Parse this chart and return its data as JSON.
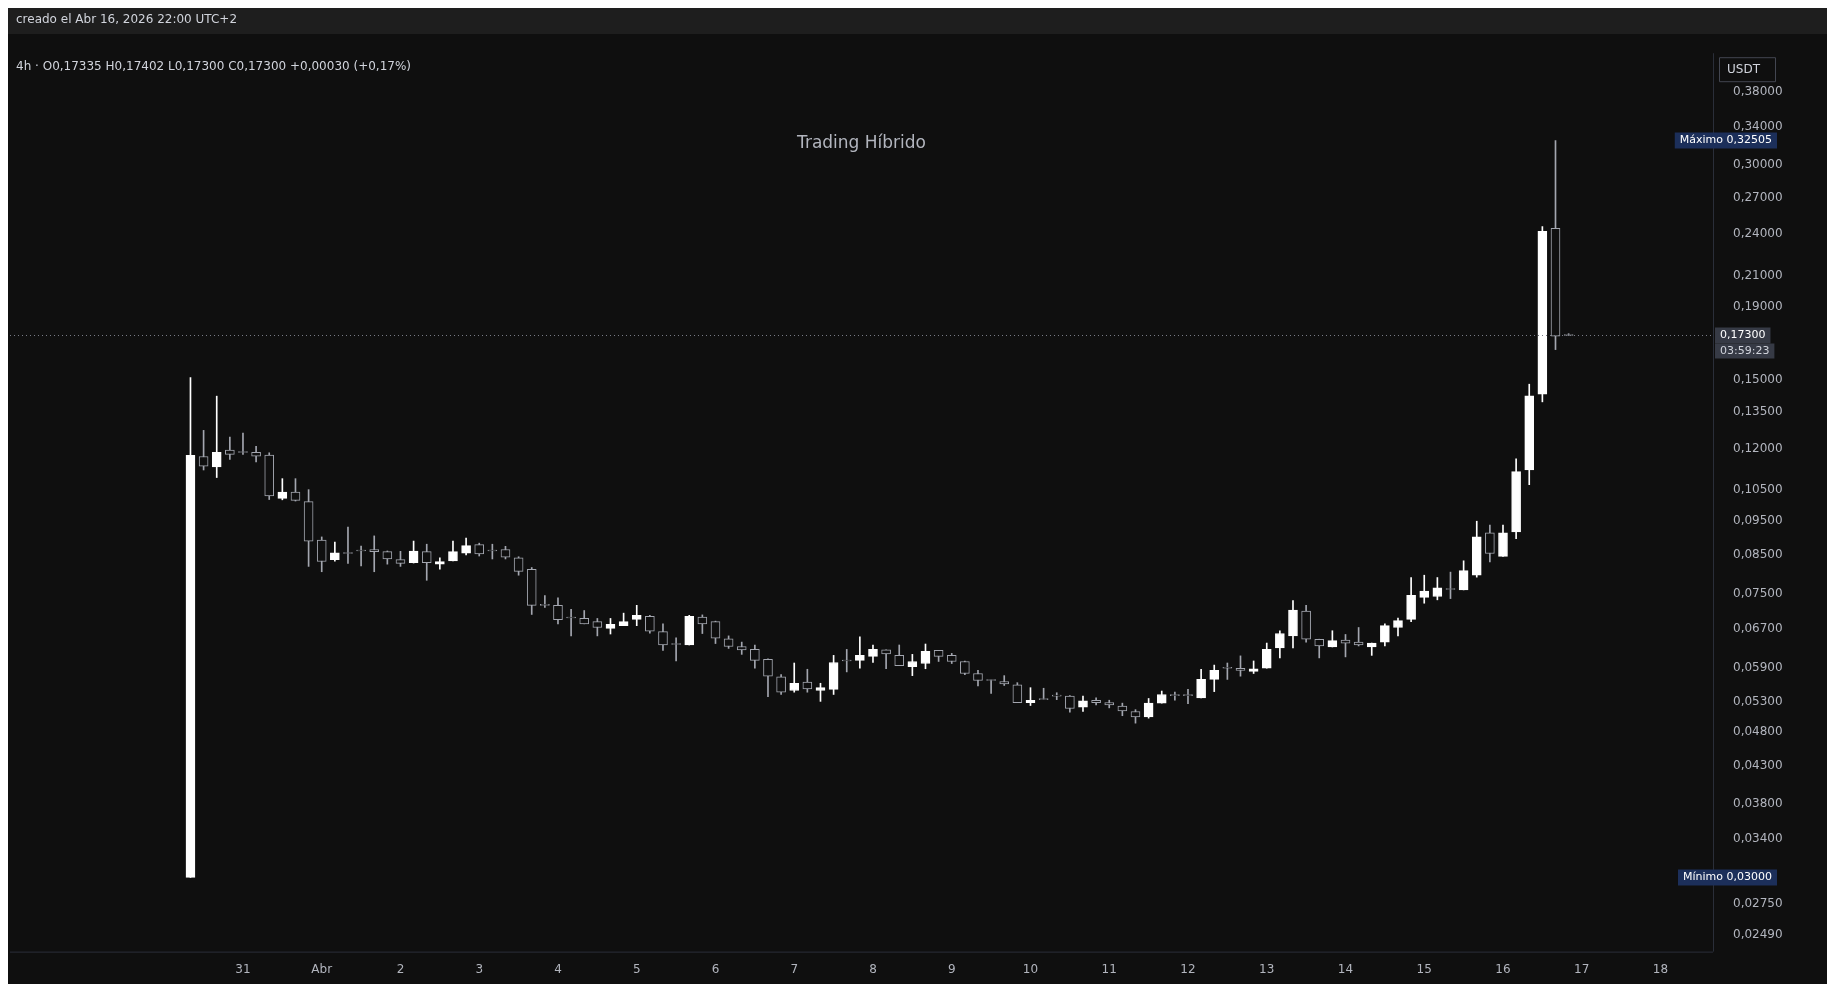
{
  "chart_data": {
    "type": "candlestick",
    "subtitle": "Trading Híbrido",
    "ylabel": "USDT",
    "annotations": [
      "creado el Abr 16, 2026 22:00 UTC+2",
      "4h · O0,17335 H0,17402 L0,17300 C0,17300 +0,00030 (+0,17%)",
      "Máximo 0,32505",
      "Mínimo 0,03000",
      "03:59:23"
    ],
    "colors": [
      "#ffffff",
      "#a3a6af",
      "#ffffff",
      "#a3a6af",
      "#a3a6af",
      "#a3a6af",
      "#a3a6af",
      "#ffffff",
      "#a3a6af",
      "#a3a6af",
      "#a3a6af",
      "#ffffff",
      "#a3a6af",
      "#a3a6af",
      "#a3a6af",
      "#a3a6af",
      "#a3a6af",
      "#ffffff",
      "#a3a6af",
      "#ffffff",
      "#ffffff",
      "#ffffff",
      "#a3a6af",
      "#a3a6af",
      "#a3a6af",
      "#a3a6af",
      "#a3a6af",
      "#a3a6af",
      "#a3a6af",
      "#a3a6af",
      "#a3a6af",
      "#a3a6af",
      "#ffffff",
      "#ffffff",
      "#ffffff",
      "#a3a6af",
      "#a3a6af",
      "#a3a6af",
      "#ffffff",
      "#a3a6af",
      "#a3a6af",
      "#a3a6af",
      "#a3a6af",
      "#a3a6af",
      "#a3a6af",
      "#a3a6af",
      "#ffffff",
      "#a3a6af",
      "#ffffff",
      "#ffffff",
      "#a3a6af",
      "#ffffff",
      "#ffffff",
      "#a3a6af",
      "#a3a6af",
      "#ffffff",
      "#ffffff",
      "#a3a6af",
      "#a3a6af",
      "#a3a6af",
      "#a3a6af",
      "#a3a6af",
      "#a3a6af",
      "#a3a6af",
      "#ffffff",
      "#a3a6af",
      "#a3a6af",
      "#a3a6af",
      "#ffffff",
      "#a3a6af",
      "#a3a6af",
      "#a3a6af",
      "#a3a6af",
      "#ffffff",
      "#ffffff",
      "#a3a6af",
      "#a3a6af",
      "#ffffff",
      "#ffffff",
      "#a3a6af",
      "#a3a6af",
      "#ffffff",
      "#ffffff",
      "#ffffff",
      "#ffffff",
      "#a3a6af",
      "#a3a6af",
      "#ffffff",
      "#a3a6af",
      "#a3a6af",
      "#ffffff",
      "#ffffff",
      "#ffffff",
      "#ffffff",
      "#ffffff",
      "#ffffff",
      "#a3a6af",
      "#ffffff",
      "#ffffff",
      "#a3a6af",
      "#ffffff",
      "#ffffff",
      "#ffffff",
      "#ffffff",
      "#a3a6af",
      "#a3a6af"
    ],
    "x": [
      "2026-03-30T08:00",
      "2026-03-30T12:00",
      "2026-03-30T16:00",
      "2026-03-30T20:00",
      "2026-03-31T00:00",
      "2026-03-31T04:00",
      "2026-03-31T08:00",
      "2026-03-31T12:00",
      "2026-03-31T16:00",
      "2026-03-31T20:00",
      "2026-04-01T00:00",
      "2026-04-01T04:00",
      "2026-04-01T08:00",
      "2026-04-01T12:00",
      "2026-04-01T16:00",
      "2026-04-01T20:00",
      "2026-04-02T00:00",
      "2026-04-02T04:00",
      "2026-04-02T08:00",
      "2026-04-02T12:00",
      "2026-04-02T16:00",
      "2026-04-02T20:00",
      "2026-04-03T00:00",
      "2026-04-03T04:00",
      "2026-04-03T08:00",
      "2026-04-03T12:00",
      "2026-04-03T16:00",
      "2026-04-03T20:00",
      "2026-04-04T00:00",
      "2026-04-04T04:00",
      "2026-04-04T08:00",
      "2026-04-04T12:00",
      "2026-04-04T16:00",
      "2026-04-04T20:00",
      "2026-04-05T00:00",
      "2026-04-05T04:00",
      "2026-04-05T08:00",
      "2026-04-05T12:00",
      "2026-04-05T16:00",
      "2026-04-05T20:00",
      "2026-04-06T00:00",
      "2026-04-06T04:00",
      "2026-04-06T08:00",
      "2026-04-06T12:00",
      "2026-04-06T16:00",
      "2026-04-06T20:00",
      "2026-04-07T00:00",
      "2026-04-07T04:00",
      "2026-04-07T08:00",
      "2026-04-07T12:00",
      "2026-04-07T16:00",
      "2026-04-07T20:00",
      "2026-04-08T00:00",
      "2026-04-08T04:00",
      "2026-04-08T08:00",
      "2026-04-08T12:00",
      "2026-04-08T16:00",
      "2026-04-08T20:00",
      "2026-04-09T00:00",
      "2026-04-09T04:00",
      "2026-04-09T08:00",
      "2026-04-09T12:00",
      "2026-04-09T16:00",
      "2026-04-09T20:00",
      "2026-04-10T00:00",
      "2026-04-10T04:00",
      "2026-04-10T08:00",
      "2026-04-10T12:00",
      "2026-04-10T16:00",
      "2026-04-10T20:00",
      "2026-04-11T00:00",
      "2026-04-11T04:00",
      "2026-04-11T08:00",
      "2026-04-11T12:00",
      "2026-04-11T16:00",
      "2026-04-11T20:00",
      "2026-04-12T00:00",
      "2026-04-12T04:00",
      "2026-04-12T08:00",
      "2026-04-12T12:00",
      "2026-04-12T16:00",
      "2026-04-12T20:00",
      "2026-04-13T00:00",
      "2026-04-13T04:00",
      "2026-04-13T08:00",
      "2026-04-13T12:00",
      "2026-04-13T16:00",
      "2026-04-13T20:00",
      "2026-04-14T00:00",
      "2026-04-14T04:00",
      "2026-04-14T08:00",
      "2026-04-14T12:00",
      "2026-04-14T16:00",
      "2026-04-14T20:00",
      "2026-04-15T00:00",
      "2026-04-15T04:00",
      "2026-04-15T08:00",
      "2026-04-15T12:00",
      "2026-04-15T16:00",
      "2026-04-15T20:00",
      "2026-04-16T00:00",
      "2026-04-16T04:00",
      "2026-04-16T08:00",
      "2026-04-16T12:00",
      "2026-04-16T16:00",
      "2026-04-16T20:00"
    ],
    "ohlc": [
      [
        0.03,
        0.151,
        0.03,
        0.1174
      ],
      [
        0.117,
        0.1273,
        0.112,
        0.1134
      ],
      [
        0.1131,
        0.1422,
        0.1093,
        0.1186
      ],
      [
        0.1194,
        0.1246,
        0.1159,
        0.1178
      ],
      [
        0.1186,
        0.1262,
        0.1178,
        0.1185
      ],
      [
        0.1186,
        0.1209,
        0.115,
        0.1171
      ],
      [
        0.1175,
        0.1184,
        0.1018,
        0.103
      ],
      [
        0.1022,
        0.1089,
        0.1017,
        0.1043
      ],
      [
        0.1043,
        0.1089,
        0.1013,
        0.1015
      ],
      [
        0.1011,
        0.1051,
        0.082,
        0.089
      ],
      [
        0.0893,
        0.0902,
        0.0806,
        0.0833
      ],
      [
        0.0838,
        0.0887,
        0.0834,
        0.0857
      ],
      [
        0.0855,
        0.0931,
        0.0828,
        0.0855
      ],
      [
        0.0862,
        0.0876,
        0.0821,
        0.0862
      ],
      [
        0.0866,
        0.0905,
        0.0806,
        0.086
      ],
      [
        0.086,
        0.0862,
        0.0826,
        0.084
      ],
      [
        0.0838,
        0.0861,
        0.082,
        0.0828
      ],
      [
        0.083,
        0.089,
        0.0829,
        0.0862
      ],
      [
        0.086,
        0.0881,
        0.0784,
        0.083
      ],
      [
        0.0826,
        0.0843,
        0.0813,
        0.0833
      ],
      [
        0.0835,
        0.089,
        0.0835,
        0.086
      ],
      [
        0.0856,
        0.0899,
        0.0851,
        0.0877
      ],
      [
        0.088,
        0.0884,
        0.0848,
        0.0854
      ],
      [
        0.0862,
        0.0881,
        0.084,
        0.0862
      ],
      [
        0.0866,
        0.0875,
        0.084,
        0.0845
      ],
      [
        0.0843,
        0.0846,
        0.0797,
        0.0807
      ],
      [
        0.0812,
        0.0817,
        0.0702,
        0.0723
      ],
      [
        0.0723,
        0.0746,
        0.0718,
        0.0723
      ],
      [
        0.0723,
        0.0741,
        0.0681,
        0.069
      ],
      [
        0.0694,
        0.0714,
        0.0655,
        0.0694
      ],
      [
        0.0693,
        0.0711,
        0.0681,
        0.0681
      ],
      [
        0.0686,
        0.0693,
        0.0655,
        0.0673
      ],
      [
        0.0671,
        0.0693,
        0.0659,
        0.068
      ],
      [
        0.0677,
        0.0705,
        0.0677,
        0.0686
      ],
      [
        0.0691,
        0.0723,
        0.0677,
        0.07
      ],
      [
        0.0698,
        0.07,
        0.0661,
        0.0665
      ],
      [
        0.0664,
        0.0681,
        0.0625,
        0.0636
      ],
      [
        0.0637,
        0.0651,
        0.0604,
        0.0637
      ],
      [
        0.0636,
        0.07,
        0.0636,
        0.0698
      ],
      [
        0.0696,
        0.0701,
        0.066,
        0.0681
      ],
      [
        0.0686,
        0.0687,
        0.0639,
        0.065
      ],
      [
        0.0649,
        0.0655,
        0.0629,
        0.0633
      ],
      [
        0.0633,
        0.0642,
        0.0617,
        0.0626
      ],
      [
        0.0627,
        0.0636,
        0.059,
        0.0605
      ],
      [
        0.0607,
        0.0608,
        0.0538,
        0.0575
      ],
      [
        0.0574,
        0.0578,
        0.0542,
        0.0546
      ],
      [
        0.0549,
        0.06,
        0.0546,
        0.0562
      ],
      [
        0.0564,
        0.0588,
        0.0546,
        0.0552
      ],
      [
        0.0549,
        0.0562,
        0.053,
        0.0554
      ],
      [
        0.0551,
        0.0615,
        0.0542,
        0.0601
      ],
      [
        0.0604,
        0.0627,
        0.0583,
        0.0604
      ],
      [
        0.0605,
        0.0653,
        0.059,
        0.0615
      ],
      [
        0.0613,
        0.0636,
        0.0601,
        0.0627
      ],
      [
        0.0626,
        0.0626,
        0.0589,
        0.0618
      ],
      [
        0.0615,
        0.0636,
        0.0595,
        0.0595
      ],
      [
        0.0593,
        0.0617,
        0.0576,
        0.0603
      ],
      [
        0.0599,
        0.0638,
        0.0589,
        0.0623
      ],
      [
        0.0625,
        0.0625,
        0.0603,
        0.0613
      ],
      [
        0.0615,
        0.0619,
        0.0599,
        0.0603
      ],
      [
        0.0603,
        0.0604,
        0.0578,
        0.058
      ],
      [
        0.058,
        0.0586,
        0.0557,
        0.0567
      ],
      [
        0.0567,
        0.0568,
        0.0544,
        0.0567
      ],
      [
        0.0565,
        0.0576,
        0.0558,
        0.0561
      ],
      [
        0.0559,
        0.0563,
        0.0528,
        0.0528
      ],
      [
        0.0528,
        0.0554,
        0.0523,
        0.0532
      ],
      [
        0.0533,
        0.0553,
        0.0533,
        0.0533
      ],
      [
        0.0539,
        0.0545,
        0.0533,
        0.0539
      ],
      [
        0.0539,
        0.054,
        0.0512,
        0.0518
      ],
      [
        0.052,
        0.0539,
        0.0513,
        0.0531
      ],
      [
        0.0532,
        0.0536,
        0.0524,
        0.0528
      ],
      [
        0.0528,
        0.0532,
        0.0519,
        0.0524
      ],
      [
        0.0522,
        0.0527,
        0.0506,
        0.0514
      ],
      [
        0.0513,
        0.0516,
        0.0494,
        0.0504
      ],
      [
        0.0504,
        0.0535,
        0.0502,
        0.0527
      ],
      [
        0.0527,
        0.0548,
        0.0527,
        0.0542
      ],
      [
        0.054,
        0.0546,
        0.0532,
        0.054
      ],
      [
        0.054,
        0.0551,
        0.0526,
        0.054
      ],
      [
        0.0536,
        0.0588,
        0.0536,
        0.0569
      ],
      [
        0.0569,
        0.0596,
        0.0547,
        0.0586
      ],
      [
        0.059,
        0.06,
        0.0569,
        0.059
      ],
      [
        0.059,
        0.0614,
        0.0575,
        0.0586
      ],
      [
        0.0584,
        0.0604,
        0.058,
        0.0589
      ],
      [
        0.059,
        0.064,
        0.059,
        0.0627
      ],
      [
        0.063,
        0.0666,
        0.061,
        0.066
      ],
      [
        0.0655,
        0.0734,
        0.063,
        0.0712
      ],
      [
        0.071,
        0.0723,
        0.0642,
        0.0648
      ],
      [
        0.0648,
        0.0648,
        0.061,
        0.0634
      ],
      [
        0.0632,
        0.0666,
        0.0632,
        0.0645
      ],
      [
        0.0646,
        0.0658,
        0.0612,
        0.064
      ],
      [
        0.0642,
        0.0673,
        0.0634,
        0.0636
      ],
      [
        0.0632,
        0.064,
        0.0615,
        0.064
      ],
      [
        0.0642,
        0.0681,
        0.0634,
        0.0677
      ],
      [
        0.0673,
        0.0694,
        0.0655,
        0.0688
      ],
      [
        0.0691,
        0.0791,
        0.0686,
        0.0747
      ],
      [
        0.0742,
        0.0797,
        0.0728,
        0.0757
      ],
      [
        0.0744,
        0.0791,
        0.0736,
        0.0765
      ],
      [
        0.0761,
        0.0805,
        0.0739,
        0.0761
      ],
      [
        0.076,
        0.0835,
        0.076,
        0.0809
      ],
      [
        0.0797,
        0.0949,
        0.0792,
        0.0902
      ],
      [
        0.0914,
        0.0937,
        0.0832,
        0.0855
      ],
      [
        0.0847,
        0.0937,
        0.0847,
        0.0914
      ],
      [
        0.0917,
        0.1161,
        0.0897,
        0.1114
      ],
      [
        0.112,
        0.1478,
        0.1068,
        0.1424
      ],
      [
        0.1431,
        0.246,
        0.1396,
        0.2422
      ],
      [
        0.2446,
        0.32505,
        0.1653,
        0.1727
      ],
      [
        0.17335,
        0.17402,
        0.173,
        0.173
      ]
    ],
    "xlim": [
      "2026-03-28T01:00",
      "2026-04-18T16:00"
    ],
    "xticks": [
      {
        "value": "2026-03-31",
        "label": "31"
      },
      {
        "value": "2026-04-01",
        "label": "Abr"
      },
      {
        "value": "2026-04-02",
        "label": "2"
      },
      {
        "value": "2026-04-03",
        "label": "3"
      },
      {
        "value": "2026-04-04",
        "label": "4"
      },
      {
        "value": "2026-04-05",
        "label": "5"
      },
      {
        "value": "2026-04-06",
        "label": "6"
      },
      {
        "value": "2026-04-07",
        "label": "7"
      },
      {
        "value": "2026-04-08",
        "label": "8"
      },
      {
        "value": "2026-04-09",
        "label": "9"
      },
      {
        "value": "2026-04-10",
        "label": "10"
      },
      {
        "value": "2026-04-11",
        "label": "11"
      },
      {
        "value": "2026-04-12",
        "label": "12"
      },
      {
        "value": "2026-04-13",
        "label": "13"
      },
      {
        "value": "2026-04-14",
        "label": "14"
      },
      {
        "value": "2026-04-15",
        "label": "15"
      },
      {
        "value": "2026-04-16",
        "label": "16"
      },
      {
        "value": "2026-04-17",
        "label": "17"
      },
      {
        "value": "2026-04-18",
        "label": "18"
      }
    ],
    "log": true,
    "ylim": [
      0.0236,
      0.431
    ],
    "yticks": [
      {
        "value": 0.0249,
        "label": "0,02490"
      },
      {
        "value": 0.0275,
        "label": "0,02750"
      },
      {
        "value": 0.034,
        "label": "0,03400"
      },
      {
        "value": 0.038,
        "label": "0,03800"
      },
      {
        "value": 0.043,
        "label": "0,04300"
      },
      {
        "value": 0.048,
        "label": "0,04800"
      },
      {
        "value": 0.053,
        "label": "0,05300"
      },
      {
        "value": 0.059,
        "label": "0,05900"
      },
      {
        "value": 0.067,
        "label": "0,06700"
      },
      {
        "value": 0.075,
        "label": "0,07500"
      },
      {
        "value": 0.085,
        "label": "0,08500"
      },
      {
        "value": 0.095,
        "label": "0,09500"
      },
      {
        "value": 0.105,
        "label": "0,10500"
      },
      {
        "value": 0.12,
        "label": "0,12000"
      },
      {
        "value": 0.135,
        "label": "0,13500"
      },
      {
        "value": 0.15,
        "label": "0,15000"
      },
      {
        "value": 0.19,
        "label": "0,19000"
      },
      {
        "value": 0.21,
        "label": "0,21000"
      },
      {
        "value": 0.24,
        "label": "0,24000"
      },
      {
        "value": 0.27,
        "label": "0,27000"
      },
      {
        "value": 0.3,
        "label": "0,30000"
      },
      {
        "value": 0.34,
        "label": "0,34000"
      },
      {
        "value": 0.38,
        "label": "0,38000"
      }
    ],
    "ref_lines": [
      {
        "axis": "y",
        "value": 0.173,
        "label": "0,17300",
        "line_style": "dotted",
        "color": "#787b86"
      }
    ]
  }
}
